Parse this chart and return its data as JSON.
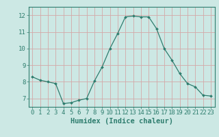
{
  "x": [
    0,
    1,
    2,
    3,
    4,
    5,
    6,
    7,
    8,
    9,
    10,
    11,
    12,
    13,
    14,
    15,
    16,
    17,
    18,
    19,
    20,
    21,
    22,
    23
  ],
  "y": [
    8.3,
    8.1,
    8.0,
    7.9,
    6.7,
    6.75,
    6.9,
    7.0,
    8.05,
    8.9,
    10.0,
    10.9,
    11.9,
    11.95,
    11.9,
    11.9,
    11.2,
    10.0,
    9.3,
    8.5,
    7.9,
    7.7,
    7.2,
    7.15
  ],
  "xlabel": "Humidex (Indice chaleur)",
  "ylim": [
    6.5,
    12.5
  ],
  "yticks": [
    7,
    8,
    9,
    10,
    11,
    12
  ],
  "xticks": [
    0,
    1,
    2,
    3,
    4,
    5,
    6,
    7,
    8,
    9,
    10,
    11,
    12,
    13,
    14,
    15,
    16,
    17,
    18,
    19,
    20,
    21,
    22,
    23
  ],
  "line_color": "#2e7d6e",
  "marker_color": "#2e7d6e",
  "bg_color": "#cce8e4",
  "grid_major_color": "#b8d8d4",
  "grid_minor_color": "#d8ecea",
  "axis_color": "#2e7d6e",
  "xlabel_fontsize": 7.5,
  "tick_fontsize": 6.5
}
